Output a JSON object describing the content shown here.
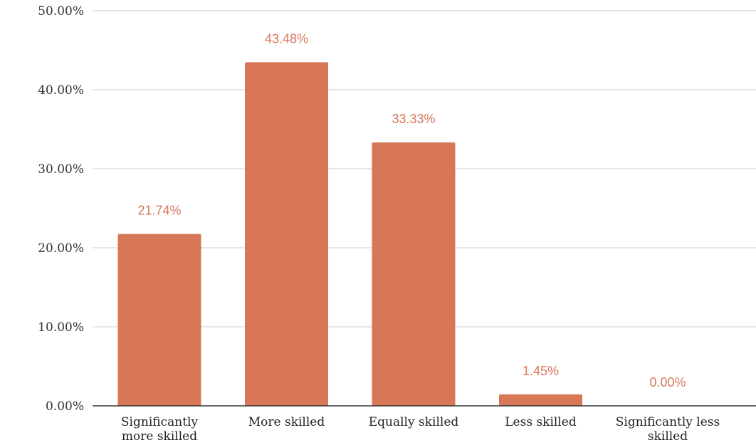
{
  "chart_data": {
    "type": "bar",
    "categories": [
      [
        "Significantly",
        "more skilled"
      ],
      [
        "More skilled"
      ],
      [
        "Equally skilled"
      ],
      [
        "Less skilled"
      ],
      [
        "Significantly less",
        "skilled"
      ]
    ],
    "values": [
      21.74,
      43.48,
      33.33,
      1.45,
      0.0
    ],
    "data_labels": [
      "21.74%",
      "43.48%",
      "33.33%",
      "1.45%",
      "0.00%"
    ],
    "y_ticks": [
      0,
      10,
      20,
      30,
      40,
      50
    ],
    "y_tick_labels": [
      "0.00%",
      "10.00%",
      "20.00%",
      "30.00%",
      "40.00%",
      "50.00%"
    ],
    "ylim": [
      0,
      50
    ],
    "grid": true,
    "title": "",
    "xlabel": "",
    "ylabel": "",
    "colors": {
      "bar": "#d87757",
      "data_label": "#d8775b",
      "grid": "#cccccc",
      "axis": "#333333"
    }
  }
}
